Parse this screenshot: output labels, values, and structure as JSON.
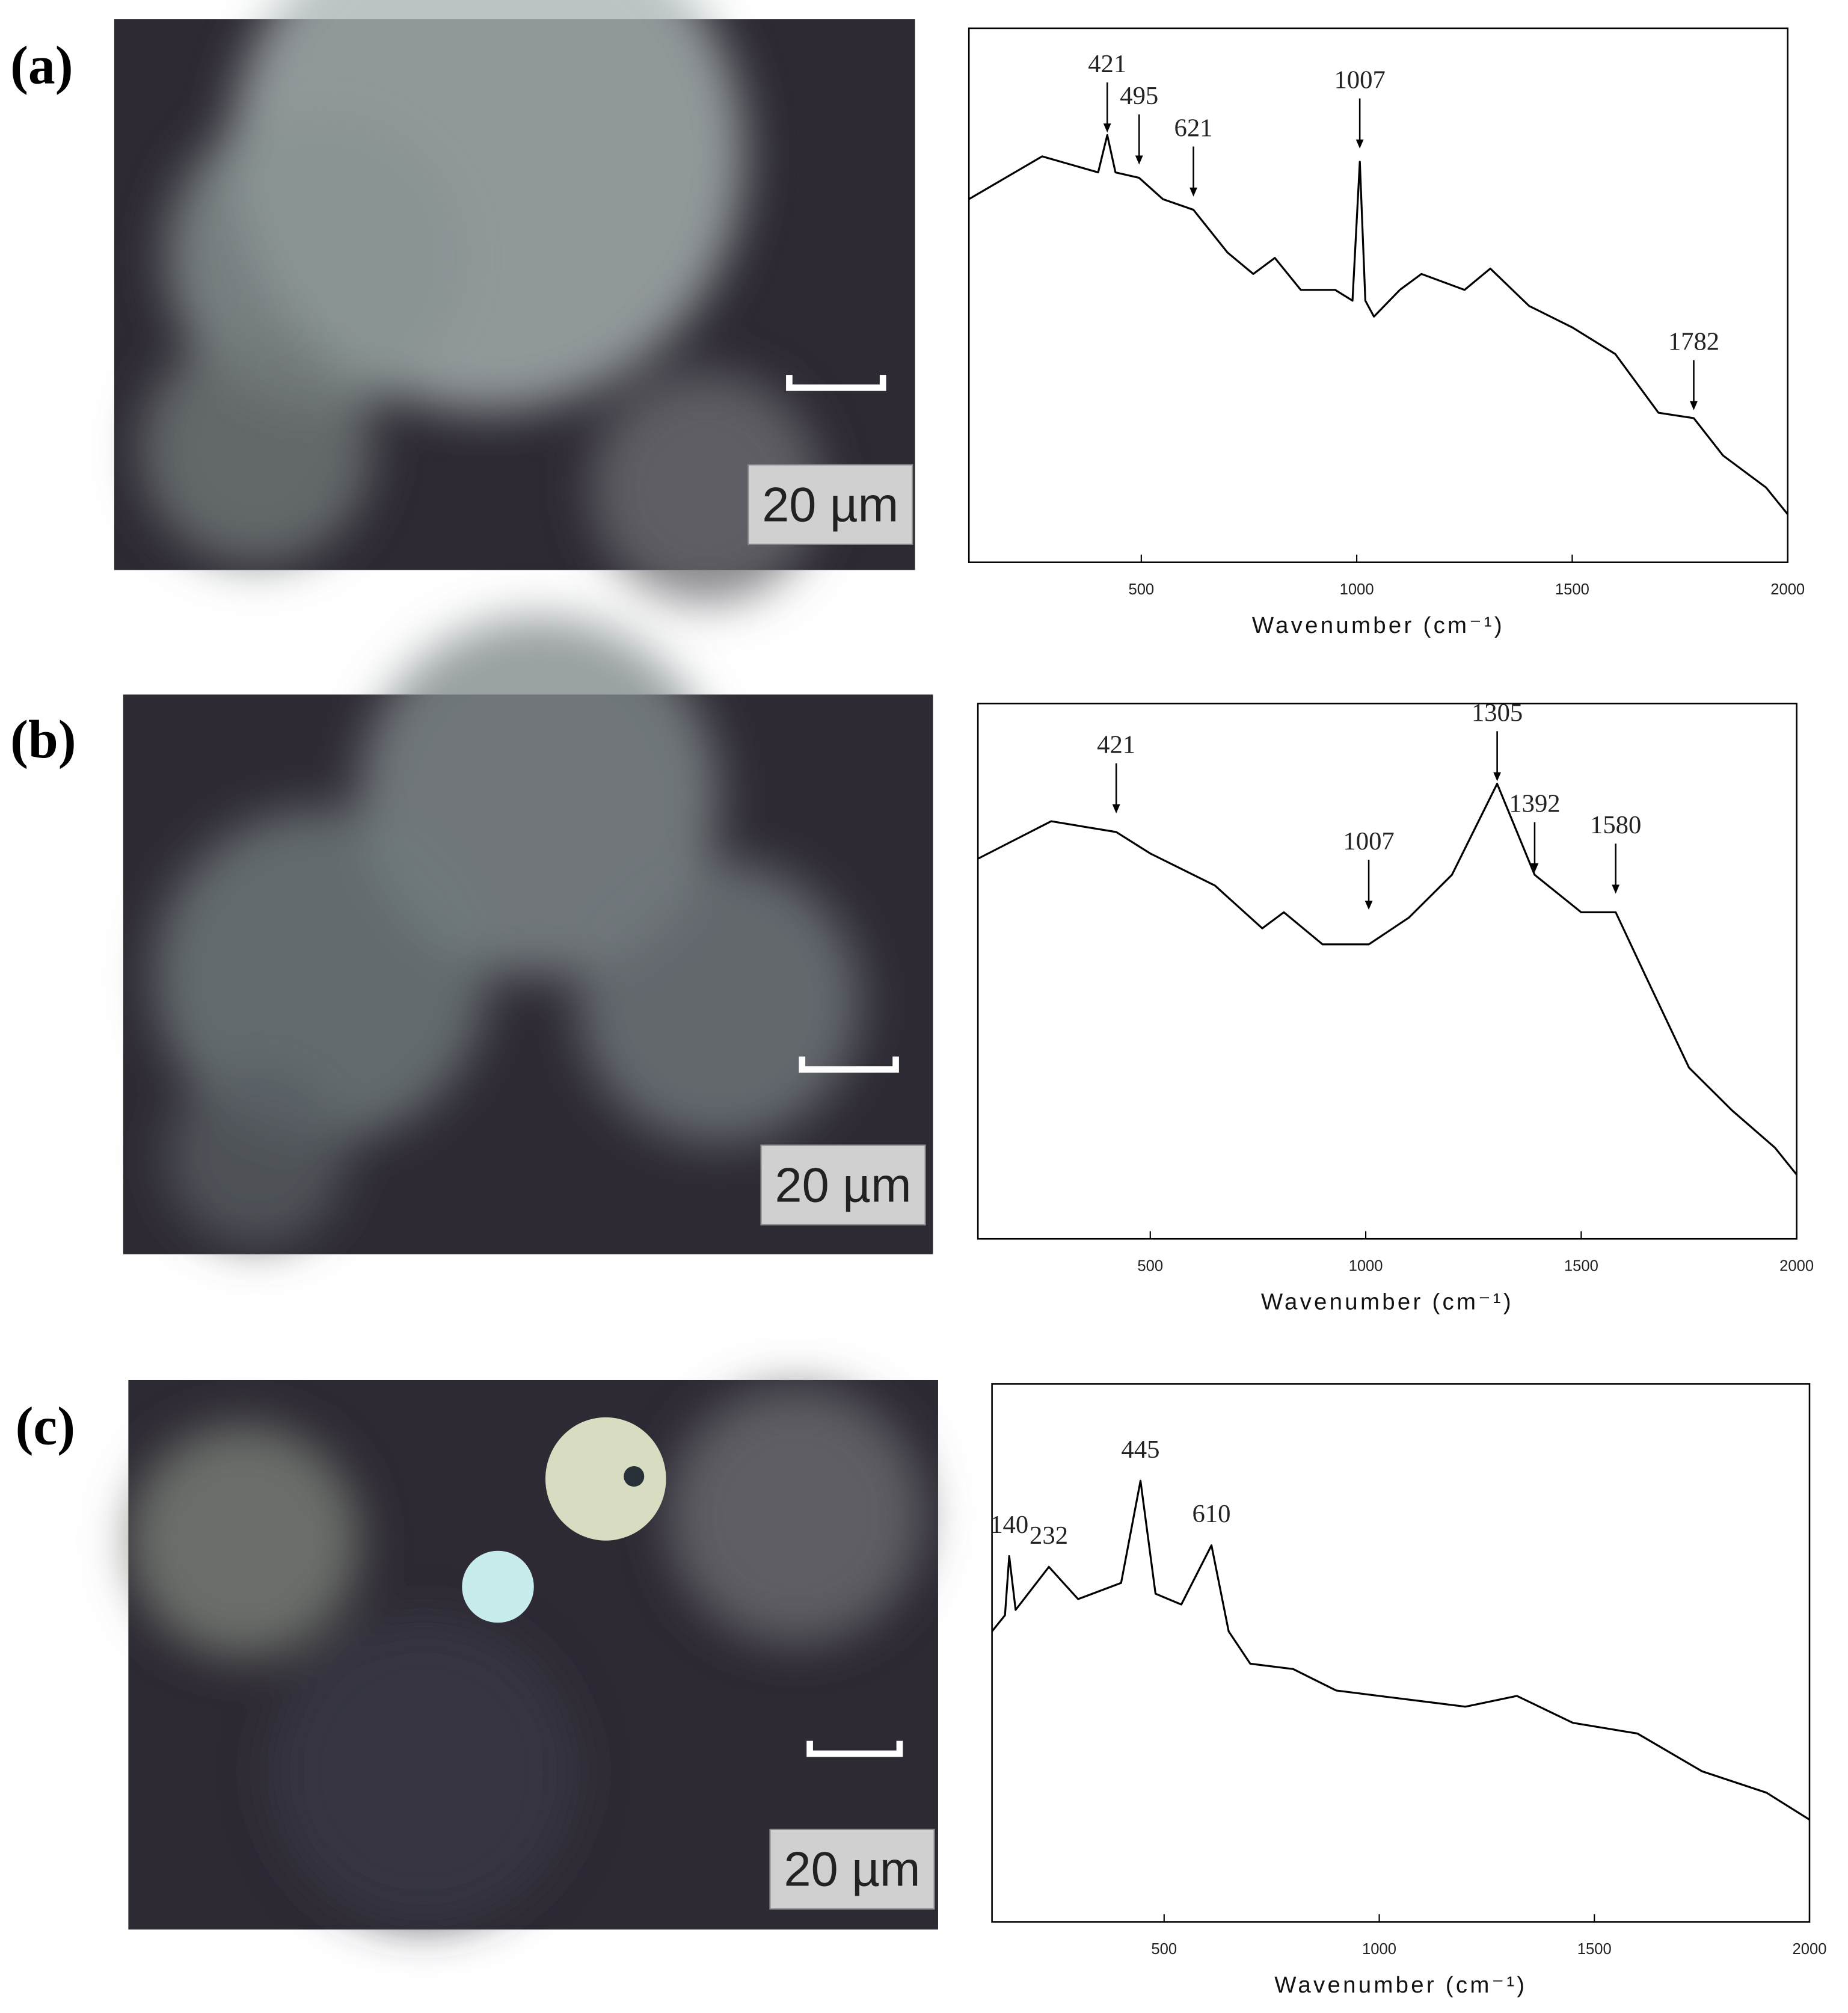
{
  "chart_data": [
    {
      "type": "line",
      "panel_label": "(a)",
      "scale_bar_label": "20 µm",
      "x_label": "Wavenumber (cm⁻¹)",
      "xlim": [
        100,
        2000
      ],
      "ylim": [
        0,
        100
      ],
      "xticks": [
        500,
        1000,
        1500,
        2000
      ],
      "color": "#000000",
      "annotation_arrows": true,
      "x": [
        100,
        270,
        400,
        421,
        440,
        495,
        550,
        621,
        700,
        760,
        810,
        870,
        950,
        990,
        1007,
        1020,
        1040,
        1100,
        1150,
        1250,
        1310,
        1400,
        1500,
        1600,
        1700,
        1782,
        1850,
        1950,
        2000
      ],
      "values": [
        68,
        76,
        73,
        80,
        73,
        72,
        68,
        66,
        58,
        54,
        57,
        51,
        51,
        49,
        75,
        49,
        46,
        51,
        54,
        51,
        55,
        48,
        44,
        39,
        28,
        27,
        20,
        14,
        9
      ],
      "annotations": [
        {
          "label": "421",
          "x": 421,
          "y": 80
        },
        {
          "label": "495",
          "x": 495,
          "y": 74
        },
        {
          "label": "621",
          "x": 621,
          "y": 68
        },
        {
          "label": "1007",
          "x": 1007,
          "y": 77
        },
        {
          "label": "1782",
          "x": 1782,
          "y": 28
        }
      ]
    },
    {
      "type": "line",
      "panel_label": "(b)",
      "scale_bar_label": "20 µm",
      "x_label": "Wavenumber (cm⁻¹)",
      "xlim": [
        100,
        2000
      ],
      "ylim": [
        0,
        100
      ],
      "xticks": [
        500,
        1000,
        1500,
        2000
      ],
      "color": "#000000",
      "annotation_arrows": true,
      "x": [
        100,
        270,
        421,
        500,
        650,
        760,
        810,
        900,
        1007,
        1100,
        1200,
        1305,
        1392,
        1500,
        1580,
        1650,
        1750,
        1850,
        1950,
        2000
      ],
      "values": [
        71,
        78,
        76,
        72,
        66,
        58,
        61,
        55,
        55,
        60,
        68,
        85,
        68,
        61,
        61,
        49,
        32,
        24,
        17,
        12
      ],
      "annotations": [
        {
          "label": "421",
          "x": 421,
          "y": 79
        },
        {
          "label": "1007",
          "x": 1007,
          "y": 61
        },
        {
          "label": "1305",
          "x": 1305,
          "y": 85
        },
        {
          "label": "1392",
          "x": 1392,
          "y": 68
        },
        {
          "label": "1580",
          "x": 1580,
          "y": 64
        }
      ]
    },
    {
      "type": "line",
      "panel_label": "(c)",
      "scale_bar_label": "20 µm",
      "x_label": "Wavenumber (cm⁻¹)",
      "xlim": [
        100,
        2000
      ],
      "ylim": [
        0,
        100
      ],
      "xticks": [
        500,
        1000,
        1500,
        2000
      ],
      "color": "#000000",
      "annotation_arrows": false,
      "x": [
        100,
        130,
        140,
        155,
        232,
        300,
        400,
        445,
        480,
        540,
        610,
        650,
        700,
        800,
        900,
        1000,
        1100,
        1200,
        1320,
        1450,
        1600,
        1750,
        1900,
        2000
      ],
      "values": [
        54,
        57,
        68,
        58,
        66,
        60,
        63,
        82,
        61,
        59,
        70,
        54,
        48,
        47,
        43,
        42,
        41,
        40,
        42,
        37,
        35,
        28,
        24,
        19
      ],
      "annotations": [
        {
          "label": "140",
          "x": 140,
          "y": 68
        },
        {
          "label": "232",
          "x": 232,
          "y": 66
        },
        {
          "label": "445",
          "x": 445,
          "y": 82
        },
        {
          "label": "610",
          "x": 610,
          "y": 70
        }
      ]
    }
  ]
}
